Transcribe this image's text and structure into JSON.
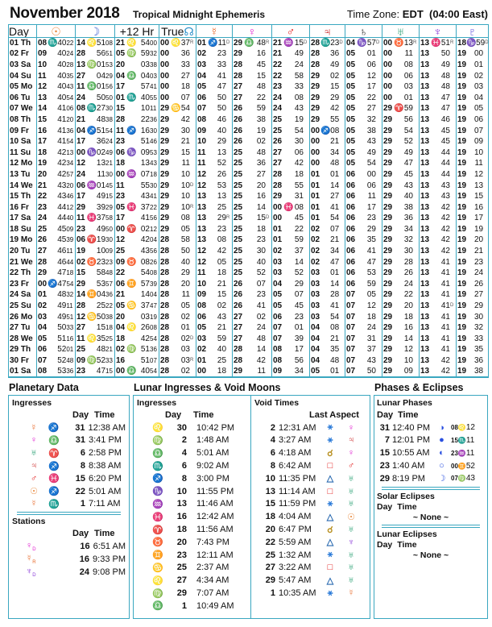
{
  "header": {
    "title": "November 2018",
    "subtitle": "Tropical Midnight Ephemeris",
    "tz_label": "Time Zone:",
    "tz_value": "EDT",
    "tz_offset": "(04:00 East)"
  },
  "columns": [
    {
      "label": "Day"
    },
    {
      "glyph": "☉",
      "color": "#e8873a"
    },
    {
      "glyph": "☽",
      "color": "#3c5fd0"
    },
    {
      "label": "+12 Hr"
    },
    {
      "label": "True",
      "glyph": "☊",
      "color": "#2a8fc8"
    },
    {
      "glyph": "☿",
      "color": "#e86a2a"
    },
    {
      "glyph": "♀",
      "color": "#e020d0"
    },
    {
      "glyph": "♂",
      "color": "#e01010"
    },
    {
      "glyph": "♃",
      "color": "#c81818"
    },
    {
      "glyph": "♄",
      "color": "#222"
    },
    {
      "glyph": "♅",
      "color": "#1a9a6a"
    },
    {
      "glyph": "♆",
      "color": "#8a3ad8"
    },
    {
      "glyph": "♇",
      "color": "#4a3ad8"
    }
  ],
  "sign_colors": {
    "♈": "#e01010",
    "♉": "#2aa030",
    "♊": "#e87020",
    "♋": "#2a80c8",
    "♌": "#e0a020",
    "♍": "#b08020",
    "♎": "#20b040",
    "♏": "#8a40d0",
    "♐": "#e86a20",
    "♑": "#2a5a20",
    "♒": "#20a8d0",
    "♓": "#9a30e0"
  },
  "rows": [
    {
      "day": "01 Th",
      "c": [
        "08|♏|40|22",
        "14|♌|51|08",
        "21|♌|54|00",
        "00|♌|37|R",
        "01|♐|11|D",
        "29|♎|48|R",
        "21|♒|15|D",
        "28|♏|23|D",
        "04|♑|57|D",
        "00|♉|13|R",
        "13|♓|51|R",
        "18|♑|59|D"
      ]
    },
    {
      "day": "02 Fr",
      "c": [
        "09||40|24",
        "28||56|51",
        "05|♍|59|32",
        "00||36|",
        "02||23|",
        "29||16|",
        "21||49|",
        "28||36|",
        "05||01|",
        "00||11|",
        "13||50|",
        "19||00|"
      ]
    },
    {
      "day": "03 Sa",
      "c": [
        "10||40|28",
        "13|♍|01|53",
        "20||03|38",
        "00||33|",
        "03||33|",
        "28||45|",
        "22||24|",
        "28||49|",
        "05||06|",
        "00||08|",
        "13||49|",
        "19||01|"
      ]
    },
    {
      "day": "04 Su",
      "c": [
        "11||40|35",
        "27||04|29",
        "04|♎|04|03",
        "00||27|",
        "04||41|",
        "28||15|",
        "22||58|",
        "29||02|",
        "05||12|",
        "00||06|",
        "13||48|",
        "19||02|"
      ]
    },
    {
      "day": "05 Mo",
      "c": [
        "12||40|43",
        "11|♎|01|56",
        "17||57|41",
        "00||18|",
        "05||47|",
        "27||48|",
        "23||33|",
        "29||15|",
        "05||17|",
        "00||03|",
        "13||48|",
        "19||03|"
      ]
    },
    {
      "day": "06 Tu",
      "c": [
        "13||40|54",
        "24||50|50",
        "01|♏|40|55",
        "00||07|",
        "06||50|",
        "27||22|",
        "24||08|",
        "29||29|",
        "05||22|",
        "00||01|",
        "13||47|",
        "19||04|"
      ]
    },
    {
      "day": "07 We",
      "c": [
        "14||41|06",
        "08|♏|27|30",
        "15||10|11",
        "29|♋|54|",
        "07||50|",
        "26||59|",
        "24||43|",
        "29||42|",
        "05||27|",
        "29|♈|59|",
        "13||47|",
        "19||05|"
      ]
    },
    {
      "day": "08 Th",
      "c": [
        "15||41|20",
        "21||48|38",
        "28||22|36",
        "29||42|",
        "08||46|",
        "26||38|",
        "25||19|",
        "29||55|",
        "05||32|",
        "29||56|",
        "13||46|",
        "19||06|"
      ]
    },
    {
      "day": "09 Fr",
      "c": [
        "16||41|36",
        "04|♐|51|54",
        "11|♐|16|30",
        "29||30|",
        "09||40|",
        "26||19|",
        "25||54|",
        "00|♐|08|",
        "05||38|",
        "29||54|",
        "13||45|",
        "19||07|"
      ]
    },
    {
      "day": "10 Sa",
      "c": [
        "17||41|54",
        "17||36|24",
        "23||51|46",
        "29||21|",
        "10||29|",
        "26||02|",
        "26||30|",
        "00||21|",
        "05||43|",
        "29||52|",
        "13||45|",
        "19||09|"
      ]
    },
    {
      "day": "11 Su",
      "c": [
        "18||42|13",
        "00|♑|02|49",
        "06|♑|09|53",
        "29||15|",
        "11||13|",
        "25||48|",
        "27||06|",
        "00||34|",
        "05||49|",
        "29||49|",
        "13||44|",
        "19||10|"
      ]
    },
    {
      "day": "12 Mo",
      "c": [
        "19||42|34",
        "12||13|21",
        "18||13|43",
        "29||11|",
        "11||52|",
        "25||36|",
        "27||42|",
        "00||48|",
        "05||54|",
        "29||47|",
        "13||44|",
        "19||11|"
      ]
    },
    {
      "day": "13 Tu",
      "c": [
        "20||42|57",
        "24||11|30",
        "00|♒|07|18",
        "29||10|",
        "12||26|",
        "25||27|",
        "28||18|",
        "01||01|",
        "06||00|",
        "29||45|",
        "13||44|",
        "19||12|"
      ]
    },
    {
      "day": "14 We",
      "c": [
        "21||43|20",
        "06|♒|01|45",
        "11||55|30",
        "29||10|D",
        "12||53|",
        "25||20|",
        "28||55|",
        "01||14|",
        "06||06|",
        "29||43|",
        "13||43|",
        "19||13|"
      ]
    },
    {
      "day": "15 Th",
      "c": [
        "22||43|46",
        "17||49|15",
        "23||43|41",
        "29||10|",
        "13||13|",
        "25||16|",
        "29||31|",
        "01||27|",
        "06||11|",
        "29||40|",
        "13||43|",
        "19||15|"
      ]
    },
    {
      "day": "16 Fr",
      "c": [
        "23||44|12",
        "29||39|29",
        "05|♓|37|22",
        "29||10|R",
        "13||25|",
        "25||14|",
        "00|♓|08|",
        "01||41|",
        "06||17|",
        "29||38|",
        "13||42|",
        "19||16|"
      ]
    },
    {
      "day": "17 Sa",
      "c": [
        "24||44|40",
        "11|♓|37|58",
        "17||41|56",
        "29||08|",
        "13||29|R",
        "25||15|D",
        "00||45|",
        "01||54|",
        "06||23|",
        "29||36|",
        "13||42|",
        "19||17|"
      ]
    },
    {
      "day": "18 Su",
      "c": [
        "25||45|09",
        "23||49|50",
        "00|♈|02|12",
        "29||05|",
        "13||23|",
        "25||18|",
        "01||22|",
        "02||07|",
        "06||29|",
        "29||34|",
        "13||42|",
        "19||19|"
      ]
    },
    {
      "day": "19 Mo",
      "c": [
        "26||45|39",
        "06|♈|19|30",
        "12||42|04",
        "28||58|",
        "13||08|",
        "25||23|",
        "01||59|",
        "02||21|",
        "06||35|",
        "29||32|",
        "13||42|",
        "19||20|"
      ]
    },
    {
      "day": "20 Tu",
      "c": [
        "27||46|11",
        "19||10|09",
        "25||43|56",
        "28||50|",
        "12||42|",
        "25||30|",
        "02||37|",
        "02||34|",
        "06||41|",
        "29||30|",
        "13||42|",
        "19||21|"
      ]
    },
    {
      "day": "21 We",
      "c": [
        "28||46|44",
        "02|♉|23|23",
        "09|♉|08|26",
        "28||40|",
        "12||05|",
        "25||40|",
        "03||14|",
        "02||47|",
        "06||47|",
        "29||28|",
        "13||41|",
        "19||23|"
      ]
    },
    {
      "day": "22 Th",
      "c": [
        "29||47|18",
        "15||58|48",
        "22||54|08",
        "28||29|",
        "11||18|",
        "25||52|",
        "03||52|",
        "03||01|",
        "06||53|",
        "29||26|",
        "13||41|",
        "19||24|"
      ]
    },
    {
      "day": "23 Fr",
      "c": [
        "00|♐|47|54",
        "29||53|57",
        "06|♊|57|39",
        "28||20|",
        "10||21|",
        "26||07|",
        "04||29|",
        "03||14|",
        "06||59|",
        "29||24|",
        "13||41|",
        "19||26|"
      ]
    },
    {
      "day": "24 Sa",
      "c": [
        "01||48|32",
        "14|♊|04|36",
        "21||14|04",
        "28||11|",
        "09||15|",
        "26||23|",
        "05||07|",
        "03||28|",
        "07||05|",
        "29||22|",
        "13||41|",
        "19||27|"
      ]
    },
    {
      "day": "25 Su",
      "c": [
        "02||49|11",
        "28||25|22",
        "05|♋|37|47",
        "28||05|",
        "08||02|",
        "26||41|",
        "05||45|",
        "03||41|",
        "07||12|",
        "29||20|",
        "13||41|D",
        "19||29|"
      ]
    },
    {
      "day": "26 Mo",
      "c": [
        "03||49|51",
        "12|♋|50|38",
        "20||03|19",
        "28||02|",
        "06||43|",
        "27||02|",
        "06||23|",
        "03||54|",
        "07||18|",
        "29||18|",
        "13||41|",
        "19||30|"
      ]
    },
    {
      "day": "27 Tu",
      "c": [
        "04||50|33",
        "27||15|18",
        "04|♌|26|08",
        "28||01|",
        "05||21|",
        "27||24|",
        "07||01|",
        "04||08|",
        "07||24|",
        "29||16|",
        "13||41|",
        "19||32|"
      ]
    },
    {
      "day": "28 We",
      "c": [
        "05||51|16",
        "11|♌|35|25",
        "18||42|54",
        "28||02|D",
        "03||59|",
        "27||48|",
        "07||39|",
        "04||21|",
        "07||31|",
        "29||14|",
        "13||41|",
        "19||33|"
      ]
    },
    {
      "day": "29 Th",
      "c": [
        "06||52|01",
        "25||48|21",
        "02|♍|51|36",
        "28||03|",
        "02||40|",
        "28||14|",
        "08||17|",
        "04||35|",
        "07||37|",
        "29||12|",
        "13||41|",
        "19||35|"
      ]
    },
    {
      "day": "30 Fr",
      "c": [
        "07||52|48",
        "09|♍|52|33",
        "16||51|07",
        "28||03|R",
        "01||25|",
        "28||42|",
        "08||56|",
        "04||48|",
        "07||43|",
        "29||10|",
        "13||42|",
        "19||36|"
      ]
    },
    {
      "day": "01 Sa",
      "c": [
        "08||53|36",
        "23||47|15",
        "00|♎|40|54",
        "28||02|",
        "00||18|",
        "29||11|",
        "09||34|",
        "05||01|",
        "07||50|",
        "29||09|",
        "13||42|",
        "19||38|"
      ]
    }
  ],
  "planetary": {
    "title": "Planetary Data",
    "ingresses_label": "Ingresses",
    "day_label": "Day",
    "time_label": "Time",
    "ingresses": [
      {
        "p": "☿",
        "pc": "#e86a2a",
        "s": "♐",
        "day": "31",
        "time": "12:38 AM"
      },
      {
        "p": "♀",
        "pc": "#e020d0",
        "s": "♎",
        "day": "31",
        "time": "3:41 PM"
      },
      {
        "p": "♅",
        "pc": "#1a9a6a",
        "s": "♈",
        "day": "6",
        "time": "2:58 PM"
      },
      {
        "p": "♃",
        "pc": "#c81818",
        "s": "♐",
        "day": "8",
        "time": "8:38 AM"
      },
      {
        "p": "♂",
        "pc": "#e01010",
        "s": "♓",
        "day": "15",
        "time": "6:20 PM"
      },
      {
        "p": "☉",
        "pc": "#e8873a",
        "s": "♐",
        "day": "22",
        "time": "5:01 AM"
      },
      {
        "p": "☿",
        "pc": "#e86a2a",
        "s": "♏",
        "day": "1",
        "time": "7:11 AM"
      }
    ],
    "stations_label": "Stations",
    "stations": [
      {
        "p": "♀",
        "pc": "#e020d0",
        "f": "D",
        "day": "16",
        "time": "6:51 AM"
      },
      {
        "p": "☿",
        "pc": "#e86a2a",
        "f": "R",
        "day": "16",
        "time": "9:33 PM"
      },
      {
        "p": "♆",
        "pc": "#8a3ad8",
        "f": "D",
        "day": "24",
        "time": "9:08 PM"
      }
    ]
  },
  "lunar": {
    "title": "Lunar Ingresses & Void Moons",
    "ingresses_label": "Ingresses",
    "day_label": "Day",
    "time_label": "Time",
    "ingresses": [
      {
        "s": "♌",
        "day": "30",
        "time": "10:42 PM"
      },
      {
        "s": "♍",
        "day": "2",
        "time": "1:48 AM"
      },
      {
        "s": "♎",
        "day": "4",
        "time": "5:01 AM"
      },
      {
        "s": "♏",
        "day": "6",
        "time": "9:02 AM"
      },
      {
        "s": "♐",
        "day": "8",
        "time": "3:00 PM"
      },
      {
        "s": "♑",
        "day": "10",
        "time": "11:55 PM"
      },
      {
        "s": "♒",
        "day": "13",
        "time": "11:46 AM"
      },
      {
        "s": "♓",
        "day": "16",
        "time": "12:42 AM"
      },
      {
        "s": "♈",
        "day": "18",
        "time": "11:56 AM"
      },
      {
        "s": "♉",
        "day": "20",
        "time": "7:43 PM"
      },
      {
        "s": "♊",
        "day": "23",
        "time": "12:11 AM"
      },
      {
        "s": "♋",
        "day": "25",
        "time": "2:37 AM"
      },
      {
        "s": "♌",
        "day": "27",
        "time": "4:34 AM"
      },
      {
        "s": "♍",
        "day": "29",
        "time": "7:07 AM"
      },
      {
        "s": "♎",
        "day": "1",
        "time": "10:49 AM"
      }
    ],
    "void_label": "Void Times",
    "last_aspect_label": "Last Aspect",
    "aspect_colors": {
      "⚹": "#2a7ad8",
      "☌": "#b89020",
      "□": "#e01010",
      "△": "#2a6ab0"
    },
    "voids": [
      {
        "day": "2",
        "time": "12:31 AM",
        "a": "⚹",
        "p": "♀",
        "pc": "#e020d0"
      },
      {
        "day": "4",
        "time": "3:27 AM",
        "a": "⚹",
        "p": "♃",
        "pc": "#c81818"
      },
      {
        "day": "6",
        "time": "4:18 AM",
        "a": "☌",
        "p": "♀",
        "pc": "#e020d0"
      },
      {
        "day": "8",
        "time": "6:42 AM",
        "a": "□",
        "p": "♂",
        "pc": "#e01010"
      },
      {
        "day": "10",
        "time": "11:35 PM",
        "a": "△",
        "p": "♅",
        "pc": "#1a9a6a"
      },
      {
        "day": "13",
        "time": "11:14 AM",
        "a": "□",
        "p": "♅",
        "pc": "#1a9a6a"
      },
      {
        "day": "15",
        "time": "11:59 PM",
        "a": "⚹",
        "p": "♅",
        "pc": "#1a9a6a"
      },
      {
        "day": "18",
        "time": "4:04 AM",
        "a": "△",
        "p": "☉",
        "pc": "#e8873a"
      },
      {
        "day": "20",
        "time": "6:47 PM",
        "a": "☌",
        "p": "♅",
        "pc": "#1a9a6a"
      },
      {
        "day": "22",
        "time": "5:59 AM",
        "a": "△",
        "p": "♆",
        "pc": "#8a3ad8"
      },
      {
        "day": "25",
        "time": "1:32 AM",
        "a": "⚹",
        "p": "♅",
        "pc": "#1a9a6a"
      },
      {
        "day": "27",
        "time": "3:22 AM",
        "a": "□",
        "p": "♅",
        "pc": "#1a9a6a"
      },
      {
        "day": "29",
        "time": "5:47 AM",
        "a": "△",
        "p": "♅",
        "pc": "#1a9a6a"
      },
      {
        "day": "1",
        "time": "10:35 AM",
        "a": "⚹",
        "p": "☿",
        "pc": "#e86a2a"
      }
    ]
  },
  "phases": {
    "title": "Phases & Eclipses",
    "lunar_label": "Lunar Phases",
    "day_label": "Day",
    "time_label": "Time",
    "phase_color": "#2a50e0",
    "list": [
      {
        "day": "31",
        "time": "12:40 PM",
        "icon": "◑",
        "name": "last-quarter",
        "deg": "08",
        "s": "♌",
        "min": "12"
      },
      {
        "day": "7",
        "time": "12:01 PM",
        "icon": "●",
        "name": "new-moon",
        "deg": "15",
        "s": "♏",
        "min": "11"
      },
      {
        "day": "15",
        "time": "10:55 AM",
        "icon": "◐",
        "name": "first-quarter",
        "deg": "23",
        "s": "♒",
        "min": "11"
      },
      {
        "day": "23",
        "time": "1:40 AM",
        "icon": "○",
        "name": "full-moon",
        "deg": "00",
        "s": "♊",
        "min": "52"
      },
      {
        "day": "29",
        "time": "8:19 PM",
        "icon": "☽",
        "name": "last-quarter",
        "deg": "07",
        "s": "♍",
        "min": "43"
      }
    ],
    "solar_label": "Solar Eclipses",
    "solar_none": "~ None ~",
    "lunar_ecl_label": "Lunar Eclipses",
    "lunar_none": "~ None ~"
  }
}
